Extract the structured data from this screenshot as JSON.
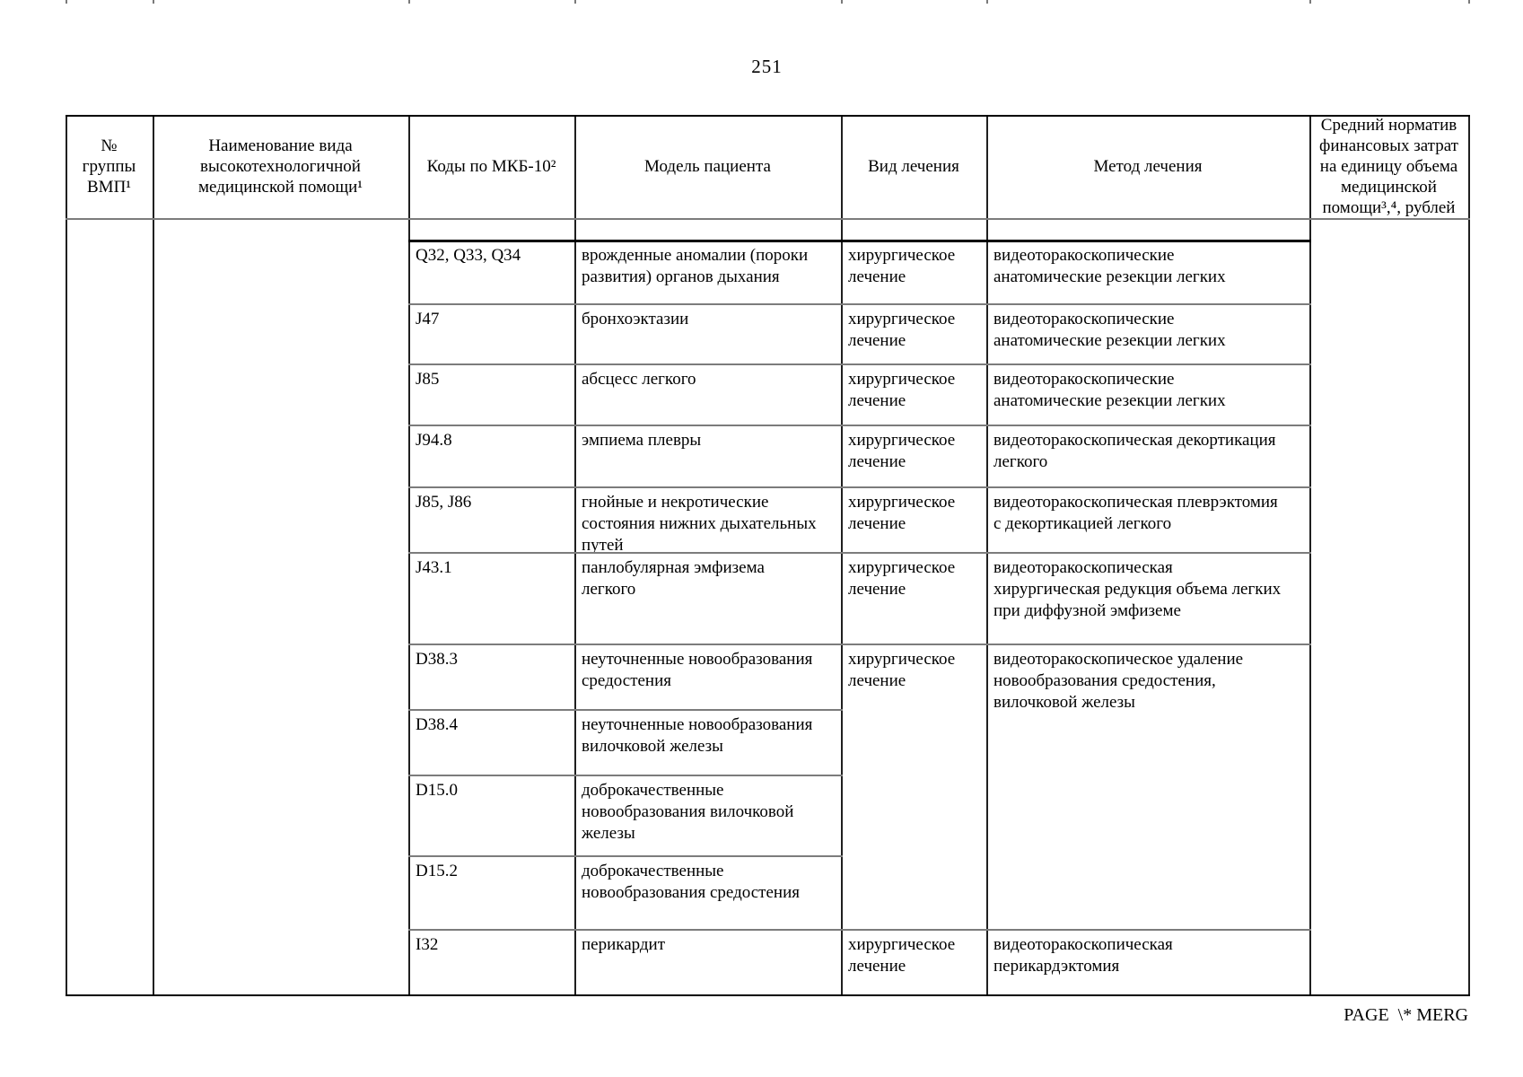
{
  "page": {
    "number": "251"
  },
  "table": {
    "columns": [
      "№\nгруппы\nВМП¹",
      "Наименование вида\nвысокотехнологичной\nмедицинской помощи¹",
      "Коды по МКБ-10²",
      "Модель пациента",
      "Вид лечения",
      "Метод лечения",
      "Средний норматив\nфинансовых затрат\nна единицу объема\nмедицинской\nпомощи³,⁴, рублей"
    ],
    "group_number": "",
    "service_name": "",
    "norm_value": "",
    "rows": [
      {
        "code": "Q32, Q33, Q34",
        "model": "врожденные аномалии (пороки\nразвития) органов дыхания",
        "treatment": "хирургическое\nлечение",
        "method": "видеоторакоскопические\nанатомические резекции легких"
      },
      {
        "code": "J47",
        "model": "бронхоэктазии",
        "treatment": "хирургическое\nлечение",
        "method": "видеоторакоскопические\nанатомические резекции легких"
      },
      {
        "code": "J85",
        "model": "абсцесс легкого",
        "treatment": "хирургическое\nлечение",
        "method": "видеоторакоскопические\nанатомические резекции легких"
      },
      {
        "code": "J94.8",
        "model": "эмпиема плевры",
        "treatment": "хирургическое\nлечение",
        "method": "видеоторакоскопическая декортикация\nлегкого"
      },
      {
        "code": "J85, J86",
        "model": "гнойные и некротические\nсостояния нижних дыхательных\nпутей",
        "treatment": "хирургическое\nлечение",
        "method": "видеоторакоскопическая плеврэктомия\nс декортикацией легкого"
      },
      {
        "code": "J43.1",
        "model": "панлобулярная эмфизема\nлегкого",
        "treatment": "хирургическое\nлечение",
        "method": "видеоторакоскопическая\nхирургическая редукция объема легких\nпри диффузной эмфиземе"
      },
      {
        "code": "D38.3",
        "model": "неуточненные новообразования\nсредостения",
        "treatment": "хирургическое\nлечение",
        "method": "видеоторакоскопическое удаление\nновообразования средостения,\nвилочковой железы"
      },
      {
        "code": "D38.4",
        "model": "неуточненные новообразования\nвилочковой железы"
      },
      {
        "code": "D15.0",
        "model": "доброкачественные\nновообразования вилочковой\nжелезы"
      },
      {
        "code": "D15.2",
        "model": "доброкачественные\nновообразования средостения"
      },
      {
        "code": "I32",
        "model": "перикардит",
        "treatment": "хирургическое\nлечение",
        "method": "видеоторакоскопическая\nперикардэктомия"
      }
    ]
  },
  "footer": {
    "field_code": "PAGE  \\* MERG"
  }
}
